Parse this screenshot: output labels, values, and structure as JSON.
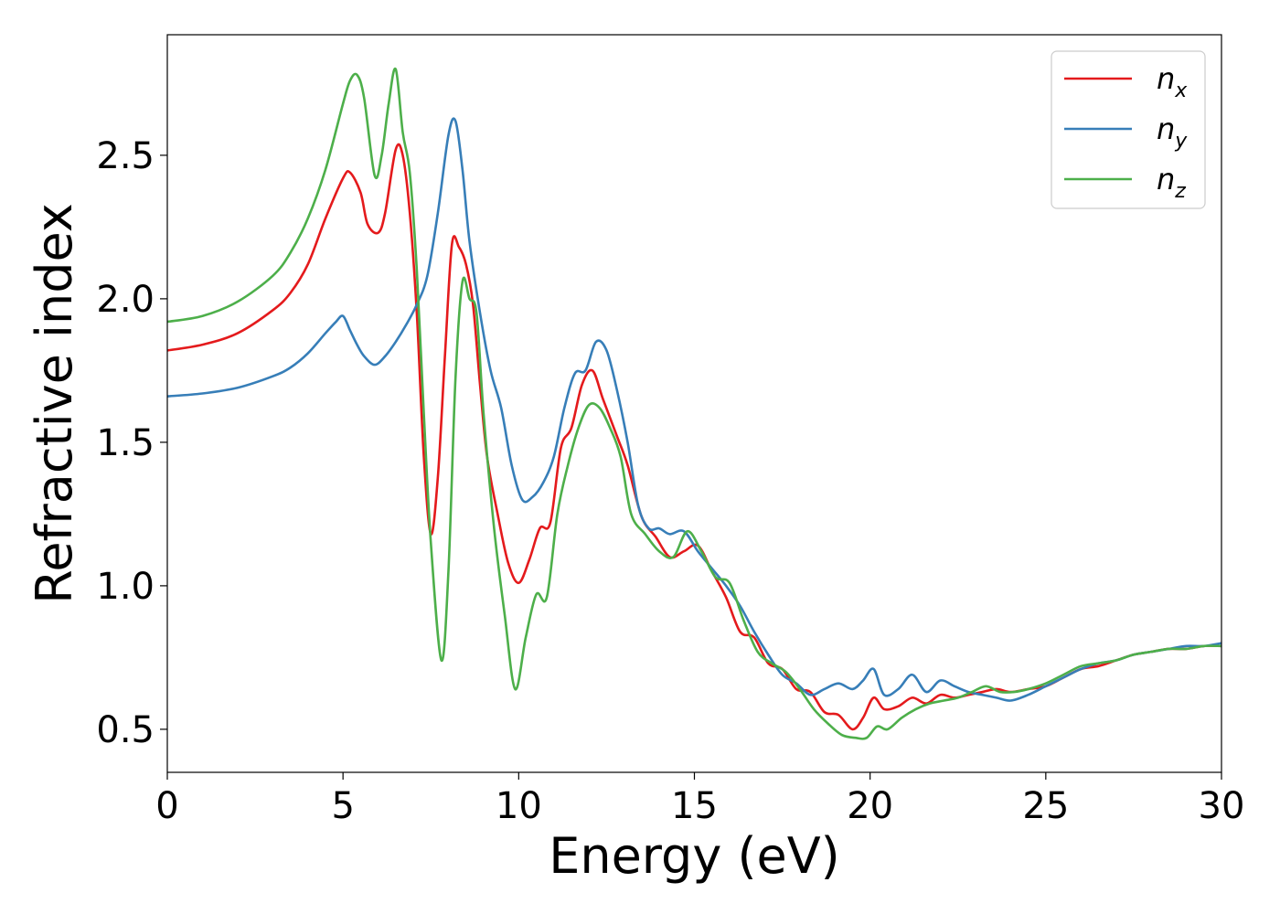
{
  "chart_data": {
    "type": "line",
    "xlabel": "Energy (eV)",
    "ylabel": "Refractive index",
    "xlim": [
      0,
      30
    ],
    "ylim": [
      0.35,
      2.92
    ],
    "xticks": [
      0,
      5,
      10,
      15,
      20,
      25,
      30
    ],
    "xtick_labels": [
      "0",
      "5",
      "10",
      "15",
      "20",
      "25",
      "30"
    ],
    "yticks": [
      0.5,
      1.0,
      1.5,
      2.0,
      2.5
    ],
    "ytick_labels": [
      "0.5",
      "1.0",
      "1.5",
      "2.0",
      "2.5"
    ],
    "grid": false,
    "legend_position": "top-right",
    "series": [
      {
        "name": "n_x",
        "label_main": "n",
        "label_sub": "x",
        "color": "#e41a1c",
        "x": [
          0,
          1,
          2,
          3,
          3.5,
          4,
          4.5,
          5,
          5.2,
          5.5,
          5.7,
          6.0,
          6.2,
          6.5,
          6.7,
          6.9,
          7.1,
          7.3,
          7.5,
          7.7,
          7.9,
          8.1,
          8.3,
          8.5,
          8.7,
          8.9,
          9.1,
          9.4,
          9.7,
          10.0,
          10.3,
          10.6,
          10.9,
          11.2,
          11.5,
          11.8,
          12.1,
          12.4,
          12.8,
          13.1,
          13.5,
          13.9,
          14.3,
          14.7,
          15.1,
          15.5,
          15.9,
          16.3,
          16.7,
          17.1,
          17.5,
          17.9,
          18.3,
          18.7,
          19.1,
          19.5,
          19.8,
          20.1,
          20.4,
          20.8,
          21.2,
          21.6,
          22.0,
          22.4,
          22.8,
          23.2,
          23.6,
          24.0,
          24.5,
          25.0,
          25.5,
          26.0,
          26.5,
          27.0,
          27.5,
          28.0,
          28.5,
          29.0,
          29.5,
          30.0
        ],
        "values": [
          1.82,
          1.84,
          1.88,
          1.96,
          2.02,
          2.12,
          2.28,
          2.42,
          2.44,
          2.37,
          2.26,
          2.23,
          2.3,
          2.52,
          2.5,
          2.3,
          1.95,
          1.45,
          1.18,
          1.38,
          1.8,
          2.19,
          2.18,
          2.12,
          1.98,
          1.7,
          1.45,
          1.25,
          1.08,
          1.01,
          1.09,
          1.2,
          1.22,
          1.48,
          1.55,
          1.7,
          1.75,
          1.65,
          1.52,
          1.42,
          1.24,
          1.17,
          1.1,
          1.12,
          1.14,
          1.05,
          0.96,
          0.84,
          0.82,
          0.73,
          0.71,
          0.64,
          0.63,
          0.56,
          0.55,
          0.5,
          0.54,
          0.61,
          0.57,
          0.58,
          0.61,
          0.59,
          0.62,
          0.61,
          0.62,
          0.63,
          0.64,
          0.63,
          0.64,
          0.65,
          0.68,
          0.71,
          0.72,
          0.74,
          0.76,
          0.77,
          0.78,
          0.78,
          0.79,
          0.79
        ]
      },
      {
        "name": "n_y",
        "label_main": "n",
        "label_sub": "y",
        "color": "#377eb8",
        "x": [
          0,
          1,
          2,
          3,
          3.5,
          4,
          4.5,
          4.8,
          5.0,
          5.2,
          5.4,
          5.6,
          5.9,
          6.2,
          6.5,
          6.8,
          7.1,
          7.4,
          7.7,
          8.0,
          8.2,
          8.4,
          8.6,
          8.9,
          9.2,
          9.5,
          9.8,
          10.1,
          10.4,
          10.7,
          11.0,
          11.3,
          11.6,
          11.9,
          12.2,
          12.5,
          12.8,
          13.1,
          13.4,
          13.7,
          14.0,
          14.3,
          14.7,
          15.1,
          15.5,
          15.9,
          16.3,
          16.7,
          17.1,
          17.5,
          17.9,
          18.3,
          18.7,
          19.1,
          19.5,
          19.8,
          20.1,
          20.4,
          20.8,
          21.2,
          21.6,
          22.0,
          22.4,
          22.8,
          23.2,
          23.6,
          24.0,
          24.5,
          25.0,
          25.5,
          26.0,
          26.5,
          27.0,
          27.5,
          28.0,
          28.5,
          29.0,
          29.5,
          30.0
        ],
        "values": [
          1.66,
          1.67,
          1.69,
          1.73,
          1.76,
          1.81,
          1.88,
          1.92,
          1.94,
          1.89,
          1.84,
          1.8,
          1.77,
          1.8,
          1.85,
          1.91,
          1.98,
          2.08,
          2.3,
          2.57,
          2.62,
          2.45,
          2.2,
          1.95,
          1.75,
          1.62,
          1.42,
          1.3,
          1.31,
          1.36,
          1.45,
          1.62,
          1.74,
          1.75,
          1.85,
          1.82,
          1.68,
          1.5,
          1.28,
          1.2,
          1.2,
          1.18,
          1.19,
          1.12,
          1.06,
          1.0,
          0.93,
          0.84,
          0.76,
          0.69,
          0.66,
          0.62,
          0.64,
          0.66,
          0.64,
          0.67,
          0.71,
          0.62,
          0.64,
          0.69,
          0.63,
          0.67,
          0.65,
          0.63,
          0.62,
          0.61,
          0.6,
          0.62,
          0.65,
          0.68,
          0.71,
          0.73,
          0.74,
          0.76,
          0.77,
          0.78,
          0.79,
          0.79,
          0.8
        ]
      },
      {
        "name": "n_z",
        "label_main": "n",
        "label_sub": "z",
        "color": "#4daf4a",
        "x": [
          0,
          1,
          2,
          3,
          3.5,
          4,
          4.5,
          5.0,
          5.2,
          5.4,
          5.6,
          5.9,
          6.1,
          6.3,
          6.5,
          6.7,
          6.9,
          7.1,
          7.3,
          7.5,
          7.8,
          8.0,
          8.2,
          8.4,
          8.6,
          8.8,
          9.0,
          9.3,
          9.6,
          9.9,
          10.2,
          10.5,
          10.8,
          11.1,
          11.4,
          11.7,
          12.0,
          12.3,
          12.6,
          12.9,
          13.2,
          13.6,
          14.0,
          14.4,
          14.8,
          15.2,
          15.6,
          16.0,
          16.4,
          16.8,
          17.2,
          17.6,
          18.0,
          18.4,
          18.8,
          19.2,
          19.6,
          19.9,
          20.2,
          20.5,
          20.9,
          21.3,
          21.7,
          22.1,
          22.5,
          22.9,
          23.3,
          23.7,
          24.1,
          24.5,
          25.0,
          25.5,
          26.0,
          26.5,
          27.0,
          27.5,
          28.0,
          28.5,
          29.0,
          29.5,
          30.0
        ],
        "values": [
          1.92,
          1.94,
          1.99,
          2.08,
          2.16,
          2.28,
          2.45,
          2.68,
          2.76,
          2.78,
          2.7,
          2.43,
          2.5,
          2.68,
          2.8,
          2.58,
          2.44,
          2.1,
          1.6,
          1.15,
          0.74,
          1.05,
          1.72,
          2.06,
          2.0,
          1.95,
          1.6,
          1.2,
          0.9,
          0.64,
          0.82,
          0.97,
          0.96,
          1.25,
          1.42,
          1.55,
          1.63,
          1.62,
          1.55,
          1.45,
          1.25,
          1.18,
          1.12,
          1.1,
          1.19,
          1.12,
          1.03,
          1.01,
          0.88,
          0.77,
          0.73,
          0.7,
          0.64,
          0.57,
          0.52,
          0.48,
          0.47,
          0.47,
          0.51,
          0.5,
          0.54,
          0.57,
          0.59,
          0.6,
          0.61,
          0.63,
          0.65,
          0.63,
          0.63,
          0.64,
          0.66,
          0.69,
          0.72,
          0.73,
          0.74,
          0.76,
          0.77,
          0.78,
          0.78,
          0.79,
          0.79
        ]
      }
    ]
  }
}
